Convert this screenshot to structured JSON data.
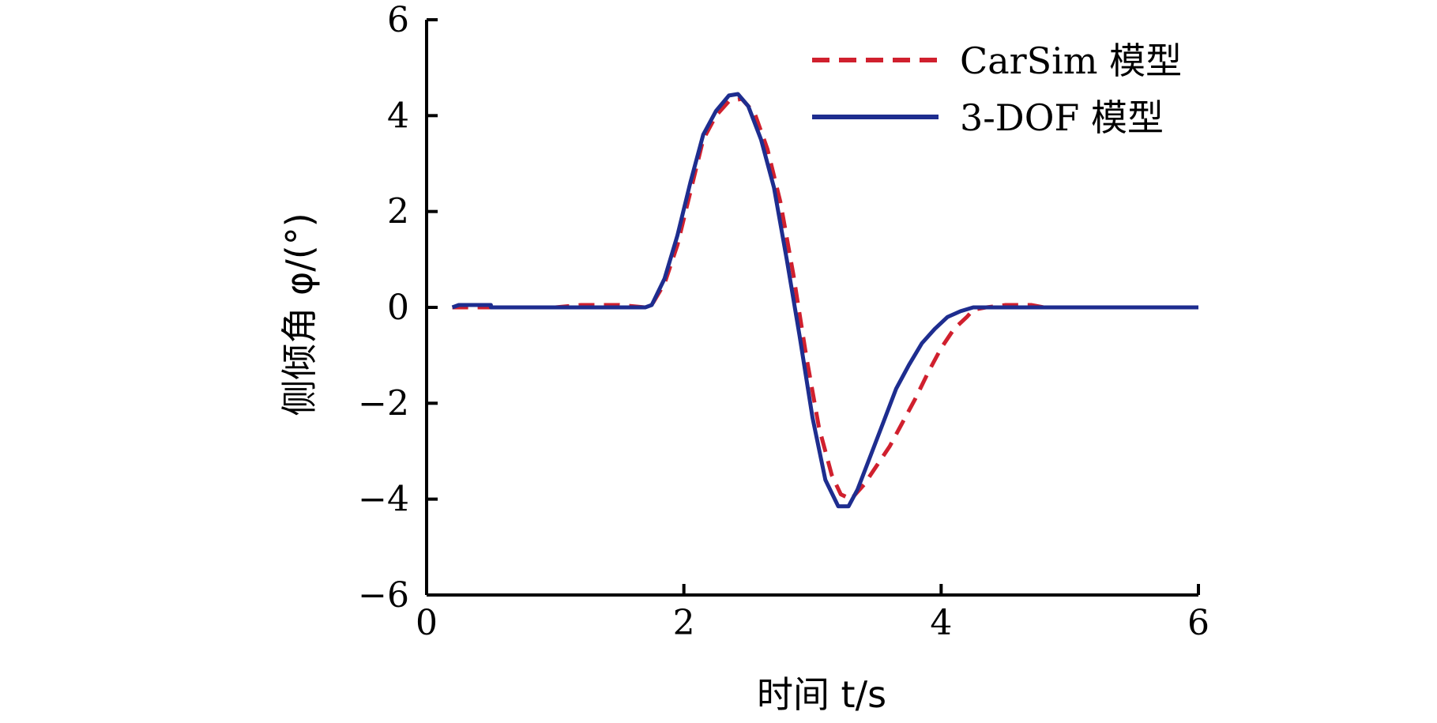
{
  "chart_data": {
    "type": "line",
    "title": "",
    "xlabel": "时间 t/s",
    "ylabel": "侧倾角 φ/(°)",
    "xlim": [
      0,
      6
    ],
    "ylim": [
      -6,
      6
    ],
    "xticks": [
      0,
      2,
      4,
      6
    ],
    "yticks": [
      -6,
      -4,
      -2,
      0,
      2,
      4,
      6
    ],
    "xtick_labels": [
      "0",
      "2",
      "4",
      "6"
    ],
    "ytick_labels": [
      "−6",
      "−4",
      "−2",
      "0",
      "2",
      "4",
      "6"
    ],
    "grid": false,
    "legend_position": "top-right",
    "series": [
      {
        "name": "CarSim 模型",
        "color": "#d0202e",
        "style": "dashed",
        "points": [
          [
            0.2,
            0
          ],
          [
            0.5,
            0
          ],
          [
            1.0,
            0
          ],
          [
            1.2,
            0.05
          ],
          [
            1.5,
            0.05
          ],
          [
            1.7,
            0
          ],
          [
            1.75,
            0.05
          ],
          [
            1.85,
            0.5
          ],
          [
            1.95,
            1.3
          ],
          [
            2.05,
            2.4
          ],
          [
            2.15,
            3.5
          ],
          [
            2.25,
            4.0
          ],
          [
            2.35,
            4.3
          ],
          [
            2.45,
            4.35
          ],
          [
            2.55,
            4.05
          ],
          [
            2.65,
            3.3
          ],
          [
            2.75,
            2.2
          ],
          [
            2.85,
            0.7
          ],
          [
            2.95,
            -1.0
          ],
          [
            3.05,
            -2.5
          ],
          [
            3.15,
            -3.5
          ],
          [
            3.22,
            -3.9
          ],
          [
            3.3,
            -4.0
          ],
          [
            3.4,
            -3.7
          ],
          [
            3.5,
            -3.3
          ],
          [
            3.6,
            -2.9
          ],
          [
            3.7,
            -2.4
          ],
          [
            3.8,
            -1.9
          ],
          [
            3.9,
            -1.35
          ],
          [
            4.0,
            -0.85
          ],
          [
            4.1,
            -0.45
          ],
          [
            4.2,
            -0.2
          ],
          [
            4.25,
            -0.05
          ],
          [
            4.35,
            0
          ],
          [
            4.5,
            0.05
          ],
          [
            4.7,
            0.05
          ],
          [
            4.8,
            0
          ],
          [
            5.0,
            0
          ]
        ]
      },
      {
        "name": "3-DOF 模型",
        "color": "#1e2d8f",
        "style": "solid",
        "points": [
          [
            0.2,
            0
          ],
          [
            0.25,
            0.05
          ],
          [
            0.5,
            0.05
          ],
          [
            0.5,
            0
          ],
          [
            1.0,
            0
          ],
          [
            1.5,
            0
          ],
          [
            1.7,
            0
          ],
          [
            1.75,
            0.05
          ],
          [
            1.85,
            0.6
          ],
          [
            1.95,
            1.5
          ],
          [
            2.05,
            2.6
          ],
          [
            2.15,
            3.6
          ],
          [
            2.25,
            4.1
          ],
          [
            2.35,
            4.42
          ],
          [
            2.42,
            4.45
          ],
          [
            2.5,
            4.2
          ],
          [
            2.6,
            3.5
          ],
          [
            2.7,
            2.5
          ],
          [
            2.8,
            1.0
          ],
          [
            2.9,
            -0.6
          ],
          [
            3.0,
            -2.3
          ],
          [
            3.1,
            -3.6
          ],
          [
            3.2,
            -4.15
          ],
          [
            3.28,
            -4.15
          ],
          [
            3.35,
            -3.8
          ],
          [
            3.45,
            -3.1
          ],
          [
            3.55,
            -2.4
          ],
          [
            3.65,
            -1.7
          ],
          [
            3.75,
            -1.2
          ],
          [
            3.85,
            -0.75
          ],
          [
            3.95,
            -0.45
          ],
          [
            4.05,
            -0.2
          ],
          [
            4.15,
            -0.08
          ],
          [
            4.25,
            0
          ],
          [
            4.5,
            0
          ],
          [
            5.0,
            0
          ],
          [
            6.0,
            0
          ]
        ]
      }
    ]
  }
}
